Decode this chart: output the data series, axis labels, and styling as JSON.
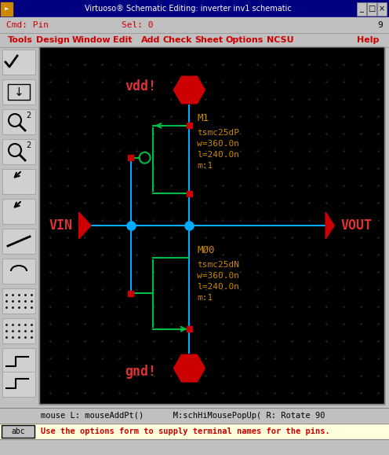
{
  "title_bar": "Virtuoso® Schematic Editing: inverter inv1 schematic",
  "cmd_text": "Cmd: Pin",
  "sel_text": "Sel: 0",
  "num_text": "9",
  "menu_items": [
    "Tools",
    "Design",
    "Window",
    "Edit",
    "Add",
    "Check",
    "Sheet",
    "Options",
    "NCSU",
    "Help"
  ],
  "menu_x": [
    10,
    46,
    92,
    144,
    180,
    208,
    248,
    288,
    340,
    455
  ],
  "status_bar1": "mouse L: mouseAddPt()      M:schHiMousePopUp( R: Rotate 90",
  "status_bar2": "Use the options form to supply terminal names for the pins.",
  "win_bg": "#c0c0c0",
  "titlebar_bg": "#000080",
  "titlebar_fg": "#ffffff",
  "schematic_bg": "#000000",
  "wire_blue": "#00aaff",
  "wire_green": "#00bb44",
  "pin_red": "#cc0000",
  "label_red": "#dd3333",
  "label_orange": "#cc8800",
  "junction_blue": "#00aaff",
  "vdd_label": "vdd!",
  "gnd_label": "gnd!",
  "vin_label": "VIN",
  "vout_label": "VOUT",
  "m1_label": "M1",
  "m0_label": "MØ0",
  "m1_props": "tsmc25dP\nw=360.0n\nl=240.0n\nm:1",
  "m0_props": "tsmc25dN\nw=360.0n\nl=240.0n\nm:1"
}
